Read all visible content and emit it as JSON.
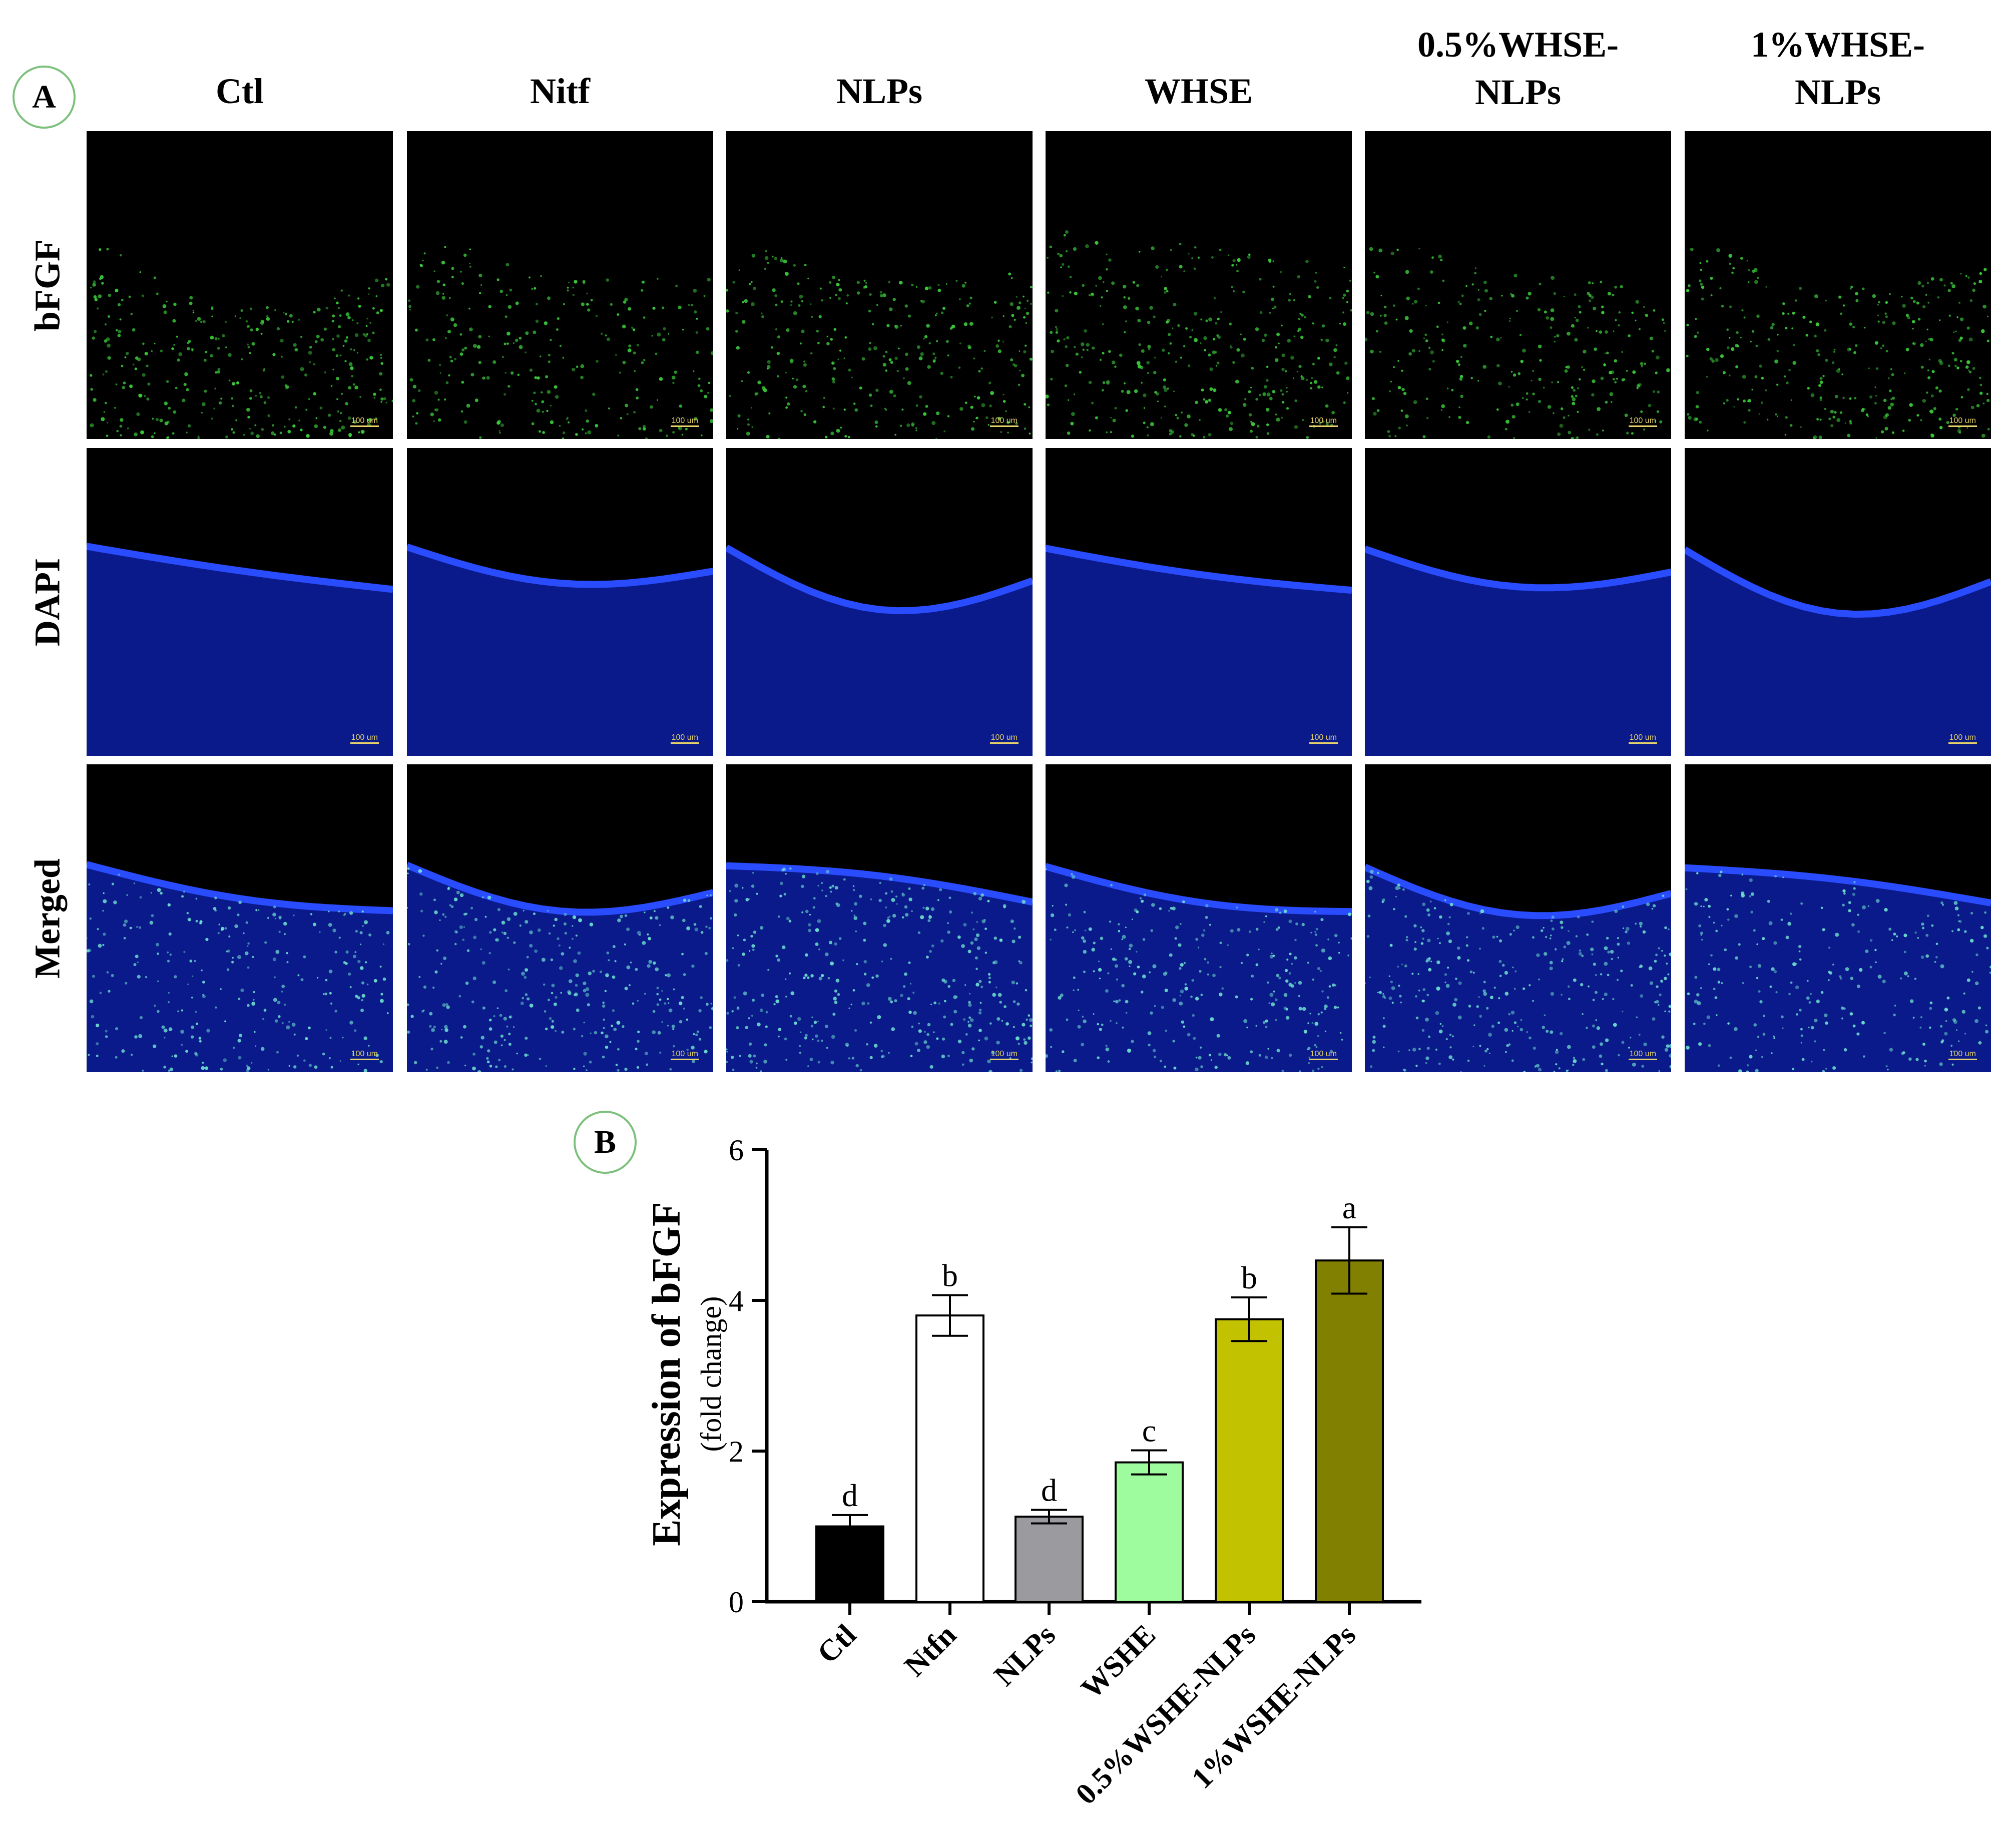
{
  "panel_a": {
    "badge": "A",
    "columns": [
      {
        "label": "Ctl"
      },
      {
        "label": "Nitf"
      },
      {
        "label": "NLPs"
      },
      {
        "label": "WHSE"
      },
      {
        "label": "0.5%WHSE-\nNLPs"
      },
      {
        "label": "1%WHSE-\nNLPs"
      }
    ],
    "rows": [
      {
        "label": "bFGF",
        "channel": "green"
      },
      {
        "label": "DAPI",
        "channel": "blue"
      },
      {
        "label": "Merged",
        "channel": "merged"
      }
    ],
    "scale_bar_label": "100 um"
  },
  "panel_b": {
    "badge": "B"
  },
  "chart_data": {
    "type": "bar",
    "categories": [
      "Ctl",
      "Ntfn",
      "NLPs",
      "WSHE",
      "0.5%WSHE-NLPs",
      "1%WSHE-NLPs"
    ],
    "values": [
      1.0,
      3.8,
      1.13,
      1.85,
      3.75,
      4.53
    ],
    "errors": [
      0.15,
      0.27,
      0.09,
      0.16,
      0.29,
      0.44
    ],
    "significance_letters": [
      "d",
      "b",
      "d",
      "c",
      "b",
      "a"
    ],
    "bar_colors": [
      "#000000",
      "#ffffff",
      "#9a9a9f",
      "#9efc9e",
      "#c3c200",
      "#818000"
    ],
    "ylabel": "Expression of bFGF",
    "ylabel_sub": "(fold change)",
    "xlabel": "",
    "ylim": [
      0,
      6
    ],
    "yticks": [
      0,
      2,
      4,
      6
    ],
    "grid": false
  }
}
